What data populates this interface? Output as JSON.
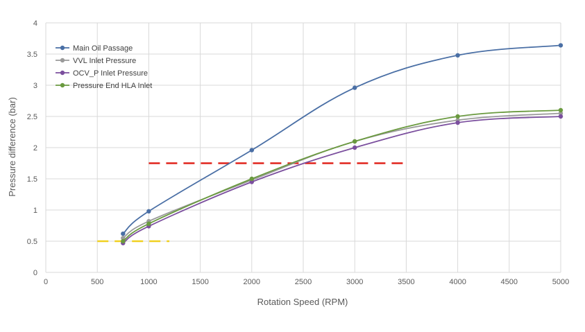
{
  "chart_data": {
    "type": "line",
    "xlabel": "Rotation Speed (RPM)",
    "ylabel": "Pressure difference (bar)",
    "xlim": [
      0,
      5000
    ],
    "ylim": [
      0,
      4
    ],
    "xticks": [
      "0",
      "500",
      "1000",
      "1500",
      "2000",
      "2500",
      "3000",
      "3500",
      "4000",
      "4500",
      "5000"
    ],
    "yticks": [
      "0",
      "0.5",
      "1",
      "1.5",
      "2",
      "2.5",
      "3",
      "3.5",
      "4"
    ],
    "grid": true,
    "legend_position": "top-left",
    "series": [
      {
        "name": "Main Oil Passage",
        "color": "#4a6fa5",
        "x": [
          750,
          1000,
          2000,
          3000,
          4000,
          5000
        ],
        "y": [
          0.62,
          0.98,
          1.96,
          2.96,
          3.48,
          3.64
        ]
      },
      {
        "name": "VVL Inlet Pressure",
        "color": "#9a9a9a",
        "x": [
          750,
          1000,
          2000,
          3000,
          4000,
          5000
        ],
        "y": [
          0.55,
          0.82,
          1.48,
          2.1,
          2.44,
          2.55
        ]
      },
      {
        "name": "OCV_P Inlet Pressure",
        "color": "#7b4f9e",
        "x": [
          750,
          1000,
          2000,
          3000,
          4000,
          5000
        ],
        "y": [
          0.47,
          0.74,
          1.45,
          2.0,
          2.4,
          2.5
        ]
      },
      {
        "name": "Pressure End HLA Inlet",
        "color": "#6a9a3f",
        "x": [
          750,
          1000,
          2000,
          3000,
          4000,
          5000
        ],
        "y": [
          0.5,
          0.78,
          1.5,
          2.1,
          2.5,
          2.6
        ]
      }
    ],
    "reference_lines": [
      {
        "color": "#e0241b",
        "y": 1.75,
        "x_start": 1000,
        "x_end": 3500
      },
      {
        "color": "#f0d020",
        "y": 0.5,
        "x_start": 500,
        "x_end": 1200
      }
    ]
  }
}
